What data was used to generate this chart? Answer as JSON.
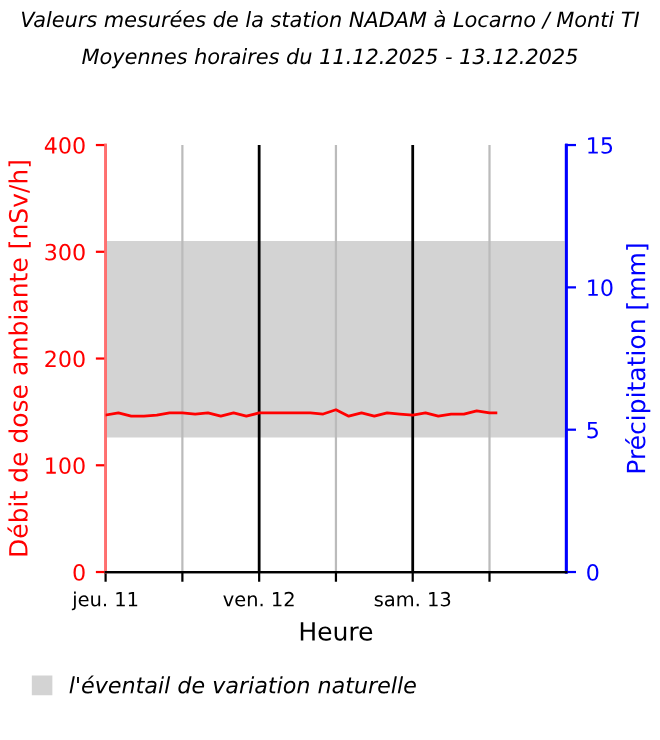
{
  "chart_data": {
    "type": "line",
    "title": "Valeurs mesurées de la station NADAM à Locarno / Monti TI",
    "subtitle": "Moyennes horaires du 11.12.2025 - 13.12.2025",
    "xlabel": "Heure",
    "ylabel": "Débit de dose ambiante [nSv/h]",
    "y2label": "Précipitation [mm]",
    "x": [
      "2025-12-11T00:00",
      "2025-12-11T02:00",
      "2025-12-11T04:00",
      "2025-12-11T06:00",
      "2025-12-11T08:00",
      "2025-12-11T10:00",
      "2025-12-11T12:00",
      "2025-12-11T14:00",
      "2025-12-11T16:00",
      "2025-12-11T18:00",
      "2025-12-11T20:00",
      "2025-12-11T22:00",
      "2025-12-12T00:00",
      "2025-12-12T02:00",
      "2025-12-12T04:00",
      "2025-12-12T06:00",
      "2025-12-12T08:00",
      "2025-12-12T10:00",
      "2025-12-12T12:00",
      "2025-12-12T14:00",
      "2025-12-12T16:00",
      "2025-12-12T18:00",
      "2025-12-12T20:00",
      "2025-12-12T22:00",
      "2025-12-13T00:00",
      "2025-12-13T02:00",
      "2025-12-13T04:00",
      "2025-12-13T06:00",
      "2025-12-13T08:00",
      "2025-12-13T10:00",
      "2025-12-13T12:00",
      "2025-12-13T13:00"
    ],
    "series": [
      {
        "color": "#ff0000",
        "values": [
          147,
          149,
          146,
          146,
          147,
          149,
          149,
          148,
          149,
          146,
          149,
          146,
          149,
          149,
          149,
          149,
          149,
          148,
          152,
          146,
          149,
          146,
          149,
          148,
          147,
          149,
          146,
          148,
          148,
          151,
          149,
          149
        ]
      }
    ],
    "xlim": [
      "2025-12-11T00:00",
      "2025-12-14T00:00"
    ],
    "xticks": [
      {
        "value": "2025-12-11T00:00",
        "label": "jeu. 11"
      },
      {
        "value": "2025-12-11T12:00",
        "label": null
      },
      {
        "value": "2025-12-12T00:00",
        "label": "ven. 12"
      },
      {
        "value": "2025-12-12T12:00",
        "label": null
      },
      {
        "value": "2025-12-13T00:00",
        "label": "sam. 13"
      },
      {
        "value": "2025-12-13T12:00",
        "label": null
      }
    ],
    "ylim": [
      0,
      400
    ],
    "yticks": [
      0,
      100,
      200,
      300,
      400
    ],
    "y2lim": [
      0,
      15
    ],
    "y2ticks": [
      0,
      5,
      10,
      15
    ],
    "bands": [
      {
        "axis": "y",
        "from": 126,
        "to": 310,
        "label": "l'éventail de variation naturelle",
        "color": "#d3d3d3"
      }
    ],
    "grid": "x",
    "legend": "bottom",
    "marker": "none",
    "line_style": "solid"
  }
}
